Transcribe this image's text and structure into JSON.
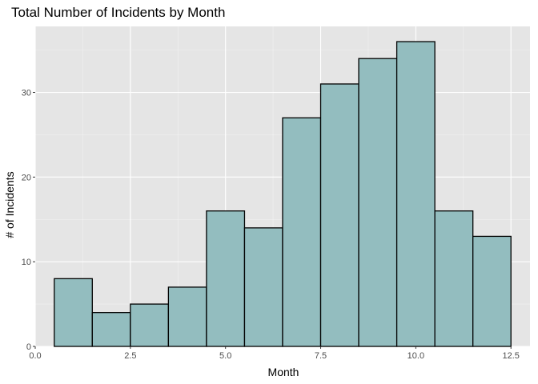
{
  "chart_data": {
    "type": "bar",
    "title": "Total Number of Incidents by Month",
    "xlabel": "Month",
    "ylabel": "# of Incidents",
    "x": [
      1,
      2,
      3,
      4,
      5,
      6,
      7,
      8,
      9,
      10,
      11,
      12
    ],
    "values": [
      8,
      4,
      5,
      7,
      16,
      14,
      27,
      31,
      34,
      36,
      16,
      13
    ],
    "bin_width": 1,
    "xlim": [
      0,
      13
    ],
    "ylim": [
      0,
      37.8
    ],
    "x_ticks": [
      0.0,
      2.5,
      5.0,
      7.5,
      10.0,
      12.5
    ],
    "x_tick_labels": [
      "0.0",
      "2.5",
      "5.0",
      "7.5",
      "10.0",
      "12.5"
    ],
    "y_ticks": [
      0,
      10,
      20,
      30
    ],
    "y_tick_labels": [
      "0",
      "10",
      "20",
      "30"
    ],
    "grid": true,
    "colors": {
      "panel_background": "#e5e5e5",
      "grid_major": "#ffffff",
      "grid_minor": "#f1f1f1",
      "bar_fill": "#93bdbf",
      "bar_stroke": "#000000",
      "tick_text": "#4d4d4d",
      "tick_mark": "#333333"
    }
  }
}
